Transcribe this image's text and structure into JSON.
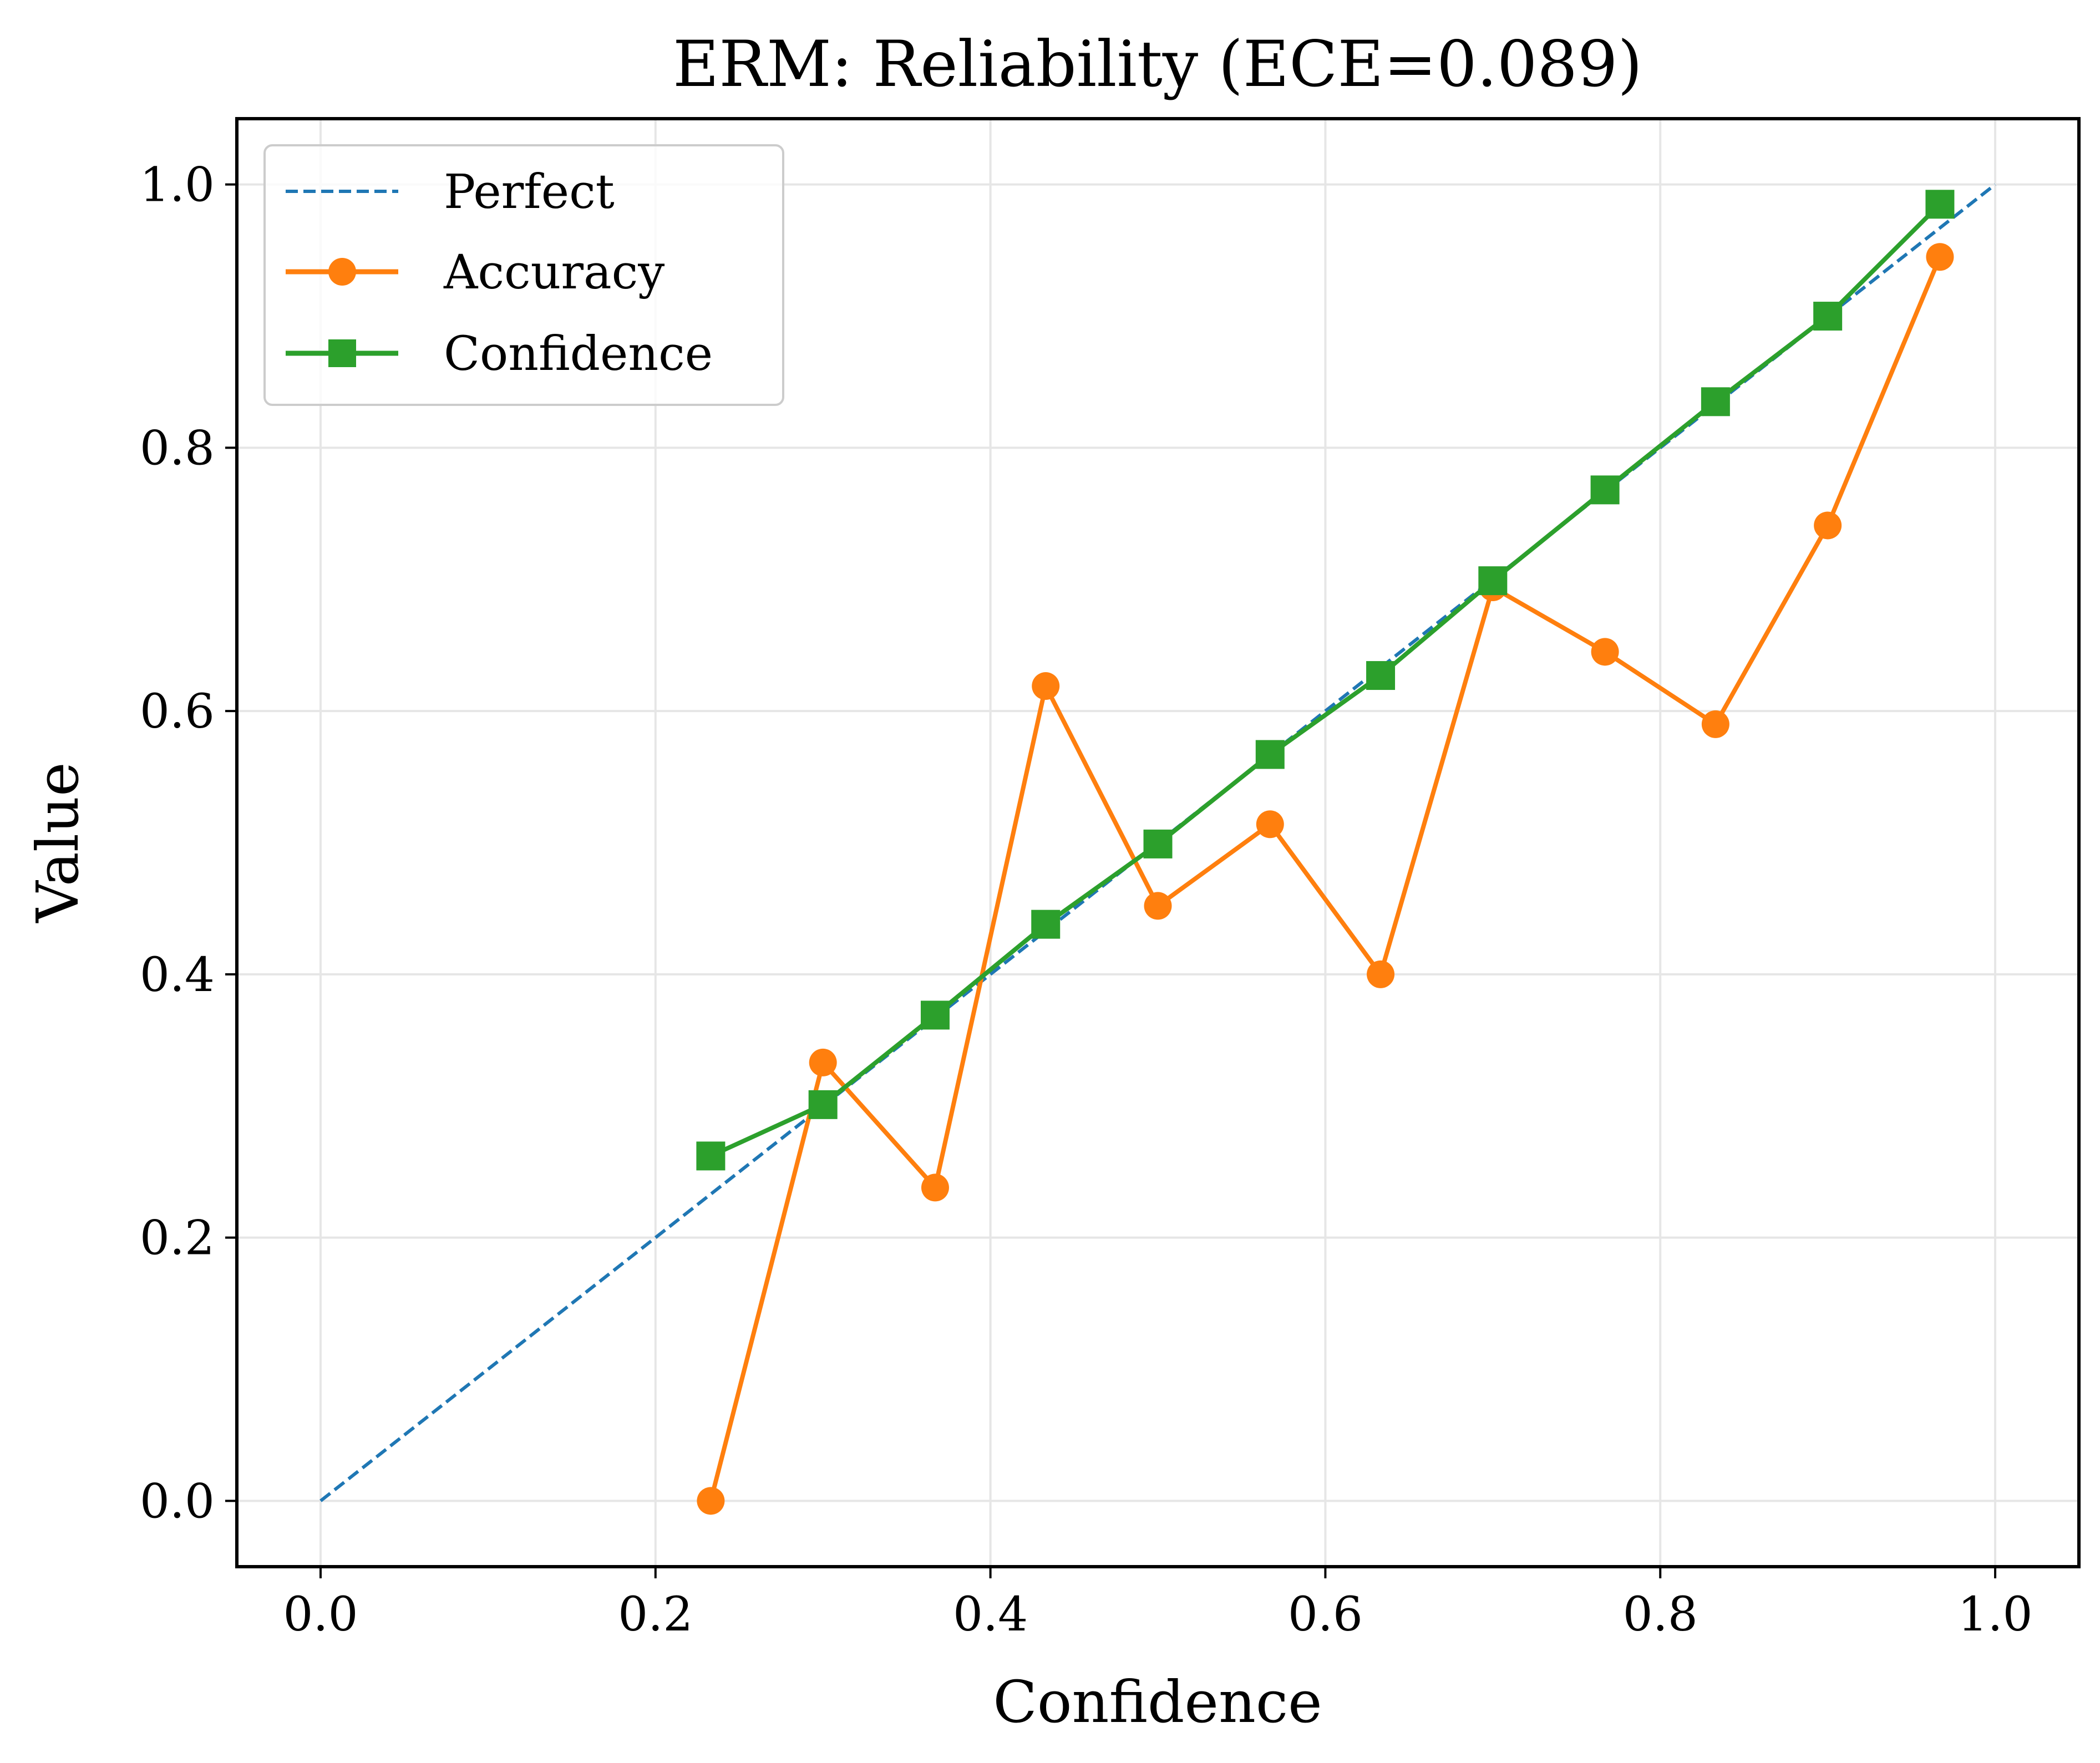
{
  "chart_data": {
    "type": "line",
    "title": "ERM: Reliability (ECE=0.089)",
    "xlabel": "Confidence",
    "ylabel": "Value",
    "xlim": [
      -0.05,
      1.05
    ],
    "ylim": [
      -0.05,
      1.05
    ],
    "xticks": [
      0.0,
      0.2,
      0.4,
      0.6,
      0.8,
      1.0
    ],
    "yticks": [
      0.0,
      0.2,
      0.4,
      0.6,
      0.8,
      1.0
    ],
    "xtick_labels": [
      "0.0",
      "0.2",
      "0.4",
      "0.6",
      "0.8",
      "1.0"
    ],
    "ytick_labels": [
      "0.0",
      "0.2",
      "0.4",
      "0.6",
      "0.8",
      "1.0"
    ],
    "grid": true,
    "legend_position": "top-left",
    "series": [
      {
        "name": "Perfect",
        "style": "dashed",
        "marker": "none",
        "color": "#1f77b4",
        "x": [
          0.0,
          1.0
        ],
        "y": [
          0.0,
          1.0
        ]
      },
      {
        "name": "Accuracy",
        "style": "solid",
        "marker": "circle",
        "color": "#ff7f0e",
        "x": [
          0.233,
          0.3,
          0.367,
          0.433,
          0.5,
          0.567,
          0.633,
          0.7,
          0.767,
          0.833,
          0.9,
          0.967
        ],
        "y": [
          0.0,
          0.333,
          0.238,
          0.619,
          0.452,
          0.514,
          0.4,
          0.694,
          0.645,
          0.59,
          0.741,
          0.945
        ]
      },
      {
        "name": "Confidence",
        "style": "solid",
        "marker": "square",
        "color": "#2ca02c",
        "x": [
          0.233,
          0.3,
          0.367,
          0.433,
          0.5,
          0.567,
          0.633,
          0.7,
          0.767,
          0.833,
          0.9,
          0.967
        ],
        "y": [
          0.262,
          0.301,
          0.369,
          0.438,
          0.499,
          0.567,
          0.627,
          0.699,
          0.768,
          0.835,
          0.9,
          0.985
        ]
      }
    ]
  }
}
